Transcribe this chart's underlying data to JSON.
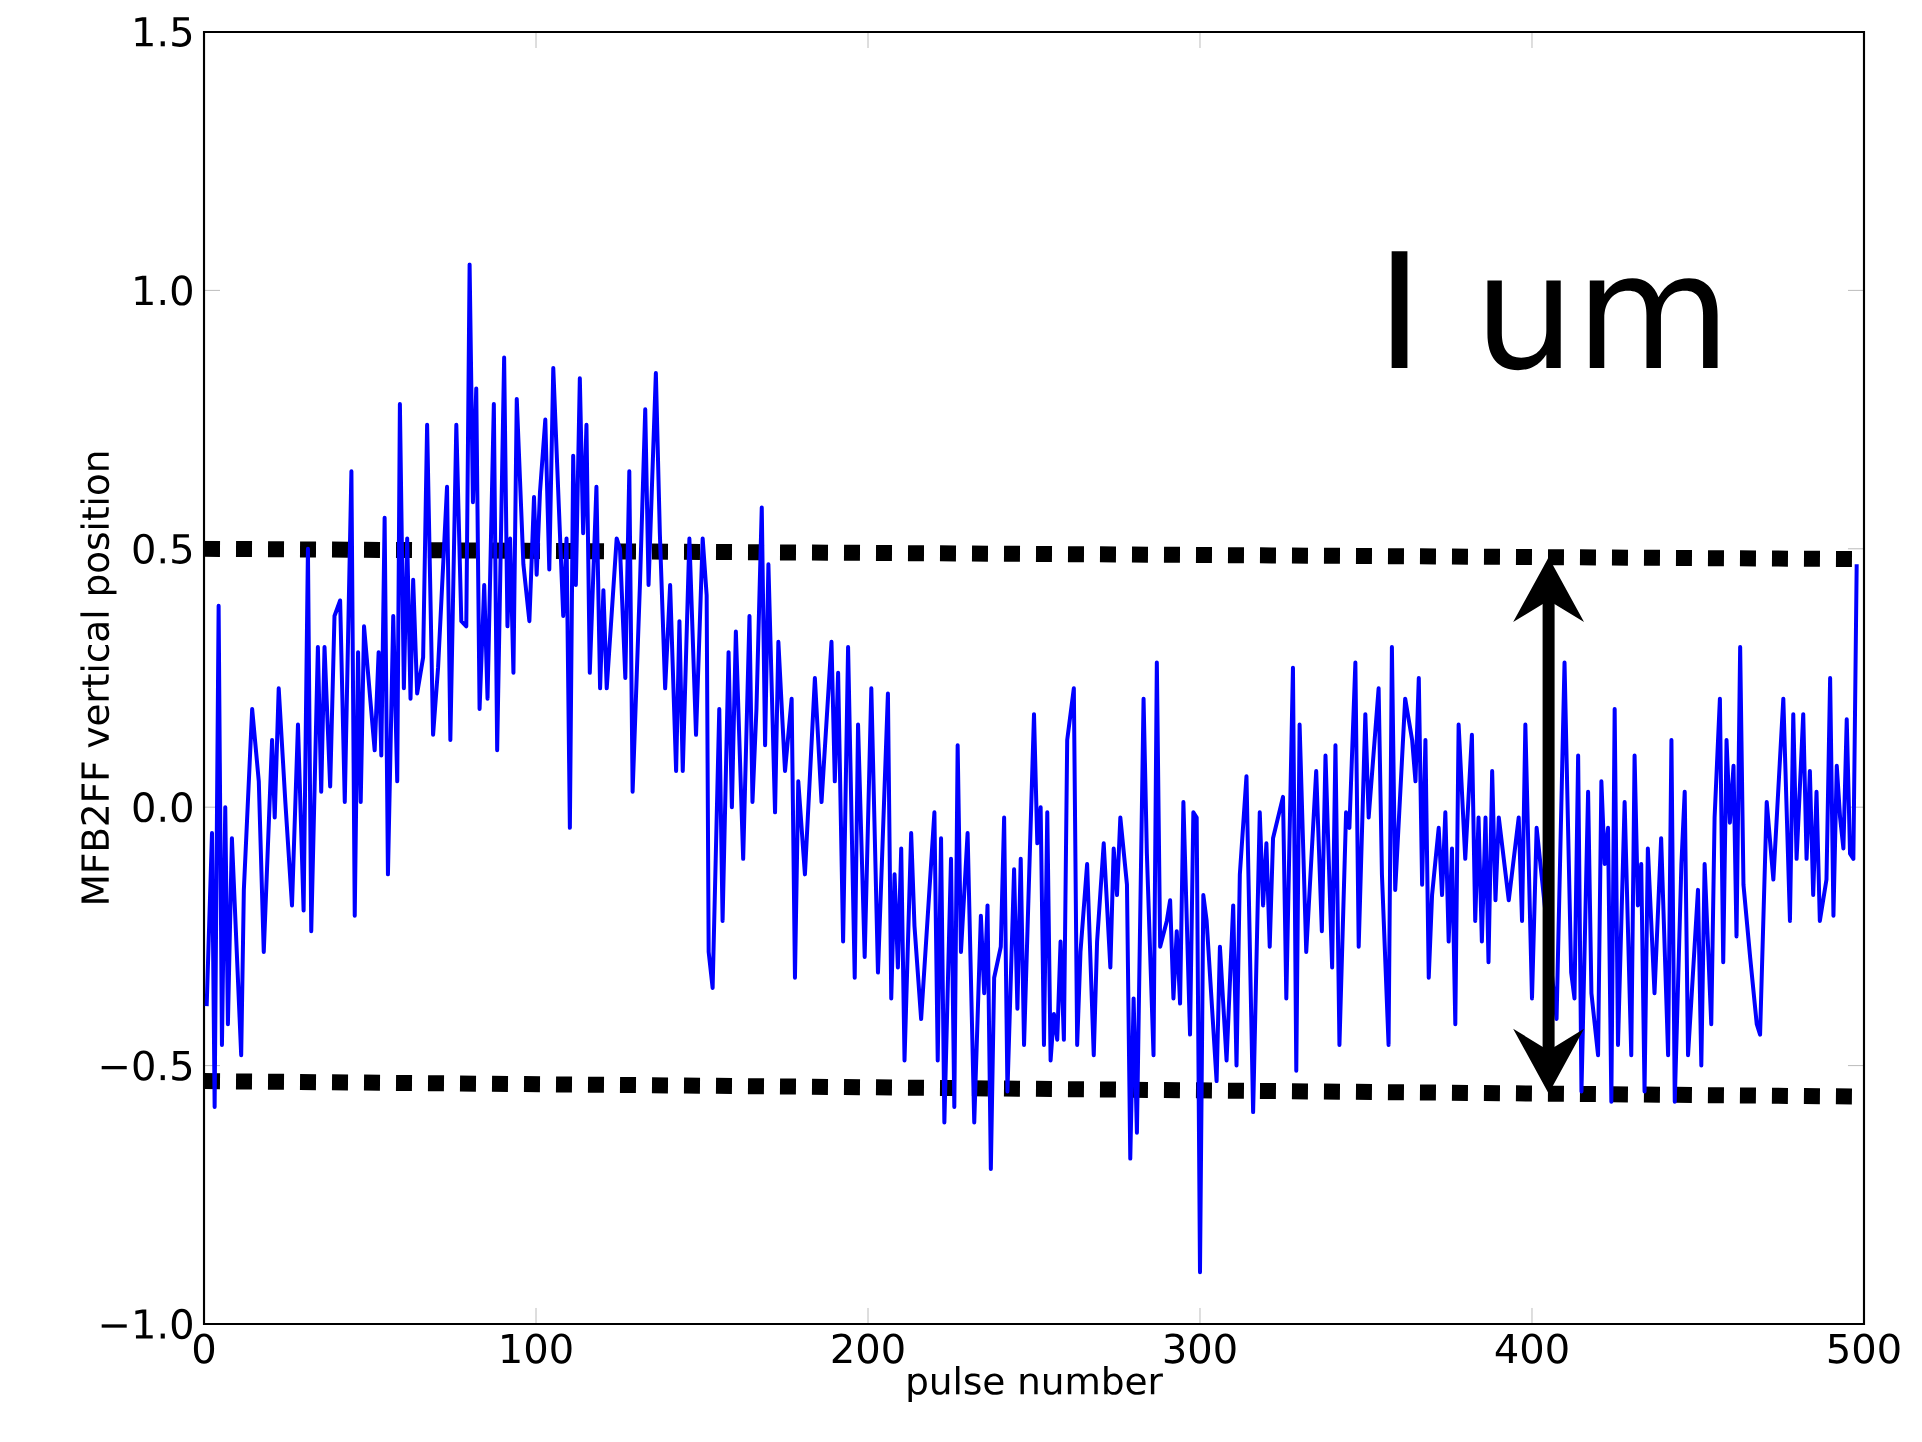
{
  "chart_data": {
    "type": "line",
    "xlabel": "pulse number",
    "ylabel": "MFB2FF vertical position",
    "xlim": [
      0,
      500
    ],
    "ylim": [
      -1,
      1.5
    ],
    "xticks": [
      0,
      100,
      200,
      300,
      400,
      500
    ],
    "yticks": [
      {
        "value": -1,
        "label": "−1.0"
      },
      {
        "value": -0.5,
        "label": "−0.5"
      },
      {
        "value": 0,
        "label": "0.0"
      },
      {
        "value": 0.5,
        "label": "0.5"
      },
      {
        "value": 1,
        "label": "1.0"
      },
      {
        "value": 1.5,
        "label": "1.5"
      }
    ],
    "annotations": [
      "I um"
    ],
    "series": [
      {
        "color": "#0000ff",
        "line_style": "solid",
        "x": [
          0.8,
          2.4,
          3.2,
          4.4,
          5.4,
          6.4,
          7.2,
          8.4,
          11.2,
          12,
          14.5,
          16.5,
          18,
          20.5,
          21.3,
          22.5,
          24.5,
          26.5,
          28.3,
          30,
          31.3,
          32.3,
          34.3,
          35.3,
          36.3,
          38,
          39.3,
          41,
          42.4,
          44.4,
          45.4,
          46.4,
          47.2,
          48.2,
          51.4,
          52.6,
          53.4,
          54.4,
          55.4,
          57,
          58.2,
          59,
          60.2,
          61.2,
          62.2,
          63,
          64.2,
          66,
          67.2,
          69,
          70.5,
          73.2,
          74.2,
          76,
          77.5,
          79,
          80,
          81,
          82,
          83,
          84.4,
          85.4,
          87.3,
          88.3,
          90.4,
          91.4,
          92.2,
          93.2,
          94.2,
          96.2,
          98,
          99.4,
          100.2,
          101.2,
          102.8,
          104,
          105.2,
          108.2,
          109.2,
          110.2,
          111.2,
          112,
          113.2,
          114.2,
          115.2,
          116.2,
          118.2,
          119.3,
          120.3,
          121.3,
          124.3,
          125.3,
          126.9,
          128.1,
          129.1,
          131.3,
          132.9,
          133.9,
          136.1,
          137.3,
          138.9,
          140.4,
          142.2,
          143.2,
          144.2,
          146.2,
          148.2,
          150.2,
          151.4,
          152,
          153.2,
          155.2,
          156.2,
          158,
          159,
          160.2,
          162.4,
          164.3,
          165.2,
          166.4,
          168,
          169,
          170,
          172,
          173,
          175,
          177,
          178,
          179,
          181,
          184,
          186,
          189,
          190,
          191,
          192.5,
          194,
          196,
          197,
          199,
          201,
          203,
          206,
          207,
          208,
          209,
          210,
          211,
          213,
          214,
          216,
          220,
          221,
          222,
          223,
          225,
          226,
          227,
          228,
          230,
          232,
          234,
          235,
          236,
          237,
          238,
          240,
          241,
          242,
          244,
          245,
          246,
          247,
          250,
          251,
          252,
          253,
          254,
          255,
          256,
          257,
          258,
          259,
          260,
          262,
          263,
          264,
          266,
          268,
          269,
          271,
          273,
          274,
          275,
          276,
          278,
          279,
          280,
          281,
          283,
          284,
          286,
          287,
          288,
          290,
          291,
          292,
          293,
          294,
          295,
          297,
          298,
          299,
          300,
          301,
          302,
          305,
          306,
          308,
          310,
          311,
          312,
          314,
          316,
          318,
          319,
          320,
          321,
          322,
          325,
          326,
          328,
          329,
          330,
          332,
          335,
          336.7,
          337.8,
          339.8,
          340.8,
          342,
          344,
          345,
          346.8,
          347.8,
          349.8,
          350.8,
          353.8,
          354.8,
          356.8,
          357.8,
          358.8,
          361.8,
          363.9,
          364.9,
          365.9,
          366.9,
          367.9,
          368.9,
          369.9,
          371.9,
          372.9,
          373.9,
          374.9,
          375.9,
          376.9,
          377.9,
          379.9,
          381.9,
          382.9,
          383.9,
          384.9,
          386,
          386.9,
          388,
          389,
          390,
          393,
          396,
          397,
          398,
          400,
          401.4,
          407.4,
          409.8,
          411.8,
          412.8,
          413.9,
          414.9,
          416.9,
          417.9,
          419.9,
          420.9,
          421.9,
          422.9,
          423.9,
          424.9,
          425.9,
          427.9,
          429.9,
          430.9,
          431.9,
          432.9,
          433.9,
          434.9,
          436.9,
          438.9,
          441,
          442,
          443,
          445,
          446,
          447,
          450,
          451,
          452,
          454,
          455,
          456.6,
          457.6,
          458.6,
          459.6,
          460.7,
          461.6,
          462.7,
          463.7,
          465.7,
          467.7,
          468.7,
          470.7,
          472.7,
          475.7,
          477.7,
          478.7,
          479.7,
          481.7,
          482.7,
          483.7,
          484.7,
          485.7,
          486.7,
          488.7,
          489.8,
          490.8,
          491.8,
          492.8,
          493.8,
          494.8,
          495.8,
          496.8,
          497.8
        ],
        "values": [
          -0.385,
          -0.05,
          -0.58,
          0.39,
          -0.46,
          0.0,
          -0.42,
          -0.06,
          -0.48,
          -0.16,
          0.19,
          0.05,
          -0.28,
          0.13,
          -0.02,
          0.23,
          0.01,
          -0.19,
          0.16,
          -0.2,
          0.5,
          -0.24,
          0.31,
          0.03,
          0.31,
          0.04,
          0.37,
          0.4,
          0.01,
          0.65,
          -0.21,
          0.3,
          0.01,
          0.35,
          0.11,
          0.3,
          0.1,
          0.56,
          -0.13,
          0.37,
          0.05,
          0.78,
          0.23,
          0.52,
          0.21,
          0.44,
          0.22,
          0.29,
          0.74,
          0.14,
          0.27,
          0.62,
          0.13,
          0.74,
          0.36,
          0.35,
          1.05,
          0.59,
          0.81,
          0.19,
          0.43,
          0.21,
          0.78,
          0.11,
          0.87,
          0.35,
          0.52,
          0.26,
          0.79,
          0.47,
          0.36,
          0.6,
          0.45,
          0.61,
          0.75,
          0.46,
          0.85,
          0.37,
          0.52,
          -0.04,
          0.68,
          0.43,
          0.83,
          0.53,
          0.74,
          0.26,
          0.62,
          0.23,
          0.42,
          0.23,
          0.52,
          0.5,
          0.25,
          0.65,
          0.03,
          0.43,
          0.77,
          0.43,
          0.84,
          0.53,
          0.23,
          0.43,
          0.07,
          0.36,
          0.07,
          0.52,
          0.14,
          0.52,
          0.41,
          -0.28,
          -0.35,
          0.19,
          -0.22,
          0.3,
          0.0,
          0.34,
          -0.1,
          0.37,
          0.01,
          0.19,
          0.58,
          0.12,
          0.47,
          -0.01,
          0.32,
          0.07,
          0.21,
          -0.33,
          0.05,
          -0.13,
          0.25,
          0.01,
          0.32,
          0.05,
          0.26,
          -0.26,
          0.31,
          -0.33,
          0.16,
          -0.29,
          0.23,
          -0.32,
          0.22,
          -0.37,
          -0.13,
          -0.31,
          -0.08,
          -0.49,
          -0.05,
          -0.23,
          -0.41,
          -0.01,
          -0.49,
          -0.06,
          -0.61,
          -0.1,
          -0.58,
          0.12,
          -0.28,
          -0.05,
          -0.61,
          -0.21,
          -0.36,
          -0.19,
          -0.7,
          -0.33,
          -0.27,
          -0.02,
          -0.55,
          -0.12,
          -0.39,
          -0.1,
          -0.46,
          0.18,
          -0.07,
          0.0,
          -0.46,
          -0.01,
          -0.49,
          -0.4,
          -0.45,
          -0.26,
          -0.45,
          0.13,
          0.23,
          -0.46,
          -0.28,
          -0.11,
          -0.48,
          -0.26,
          -0.07,
          -0.31,
          -0.08,
          -0.17,
          -0.02,
          -0.15,
          -0.68,
          -0.37,
          -0.63,
          0.21,
          -0.09,
          -0.48,
          0.28,
          -0.27,
          -0.22,
          -0.18,
          -0.37,
          -0.24,
          -0.38,
          0.01,
          -0.44,
          -0.01,
          -0.02,
          -0.9,
          -0.17,
          -0.22,
          -0.53,
          -0.27,
          -0.49,
          -0.19,
          -0.5,
          -0.13,
          0.06,
          -0.59,
          -0.01,
          -0.19,
          -0.07,
          -0.27,
          -0.06,
          0.02,
          -0.37,
          0.27,
          -0.51,
          0.16,
          -0.28,
          0.07,
          -0.24,
          0.1,
          -0.31,
          0.12,
          -0.46,
          -0.01,
          -0.04,
          0.28,
          -0.27,
          0.18,
          -0.02,
          0.23,
          -0.13,
          -0.46,
          0.31,
          -0.16,
          0.21,
          0.13,
          0.05,
          0.25,
          -0.15,
          0.13,
          -0.33,
          -0.17,
          -0.04,
          -0.17,
          -0.01,
          -0.26,
          -0.08,
          -0.42,
          0.16,
          -0.1,
          0.14,
          -0.22,
          -0.02,
          -0.26,
          -0.02,
          -0.3,
          0.07,
          -0.18,
          -0.02,
          -0.18,
          -0.02,
          -0.22,
          0.16,
          -0.37,
          -0.04,
          -0.41,
          0.28,
          -0.32,
          -0.37,
          0.1,
          -0.55,
          0.03,
          -0.36,
          -0.48,
          0.05,
          -0.11,
          -0.04,
          -0.57,
          0.19,
          -0.46,
          0.01,
          -0.48,
          0.1,
          -0.19,
          -0.11,
          -0.55,
          -0.08,
          -0.36,
          -0.06,
          -0.48,
          0.13,
          -0.57,
          -0.11,
          0.03,
          -0.48,
          -0.16,
          -0.5,
          -0.11,
          -0.42,
          -0.02,
          0.21,
          -0.3,
          0.13,
          -0.03,
          0.08,
          -0.25,
          0.31,
          -0.15,
          -0.29,
          -0.42,
          -0.44,
          0.01,
          -0.14,
          0.21,
          -0.22,
          0.18,
          -0.1,
          0.18,
          -0.1,
          0.07,
          -0.17,
          0.03,
          -0.22,
          -0.14,
          0.25,
          -0.21,
          0.08,
          -0.02,
          -0.08,
          0.17,
          -0.09,
          -0.1,
          0.47
        ]
      },
      {
        "color": "#000000",
        "line_style": "dotted",
        "x": [
          0,
          500
        ],
        "values": [
          0.5,
          0.48
        ]
      },
      {
        "color": "#000000",
        "line_style": "dotted",
        "x": [
          0,
          500
        ],
        "values": [
          -0.53,
          -0.56
        ]
      }
    ]
  }
}
